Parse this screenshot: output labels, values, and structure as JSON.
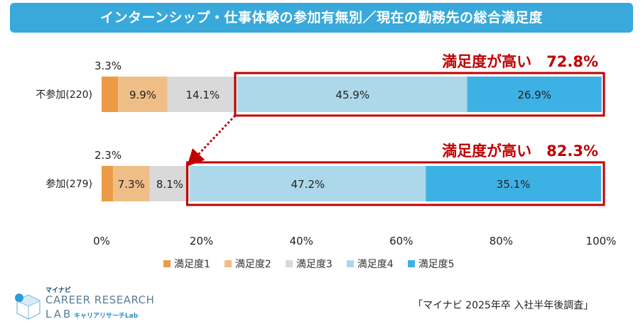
{
  "title": "インターンシップ・仕事体験の参加有無別／現在の勤務先の総合満足度",
  "chart_data": {
    "type": "stacked-bar-horizontal",
    "categories": [
      "不参加(220)",
      "参加(279)"
    ],
    "series": [
      {
        "name": "満足度1",
        "color": "#ec9a45",
        "values": [
          3.3,
          2.3
        ]
      },
      {
        "name": "満足度2",
        "color": "#efbe86",
        "values": [
          9.9,
          7.3
        ]
      },
      {
        "name": "満足度3",
        "color": "#d9d9d9",
        "values": [
          14.1,
          8.1
        ]
      },
      {
        "name": "満足度4",
        "color": "#add8ea",
        "values": [
          45.9,
          47.2
        ]
      },
      {
        "name": "満足度5",
        "color": "#3eb1e4",
        "values": [
          26.9,
          35.1
        ]
      }
    ],
    "value_labels": [
      [
        "3.3%",
        "9.9%",
        "14.1%",
        "45.9%",
        "26.9%"
      ],
      [
        "2.3%",
        "7.3%",
        "8.1%",
        "47.2%",
        "35.1%"
      ]
    ],
    "xlim": [
      0,
      100
    ],
    "xticks": [
      "0%",
      "20%",
      "40%",
      "60%",
      "80%",
      "100%"
    ],
    "legend_position": "bottom",
    "annotations": [
      {
        "text": "満足度が高い　72.8%",
        "category": "不参加(220)",
        "from_value": 27.3,
        "to_value": 100
      },
      {
        "text": "満足度が高い　82.3%",
        "category": "参加(279)",
        "from_value": 17.7,
        "to_value": 100
      }
    ],
    "accent_color": "#c00000"
  },
  "source": "「マイナビ 2025年卒 入社半年後調査」",
  "logo": {
    "brand": "マイナビ",
    "line1": "CAREER RESEARCH",
    "line2": "LAB",
    "sub": "キャリアリサーチLab"
  }
}
